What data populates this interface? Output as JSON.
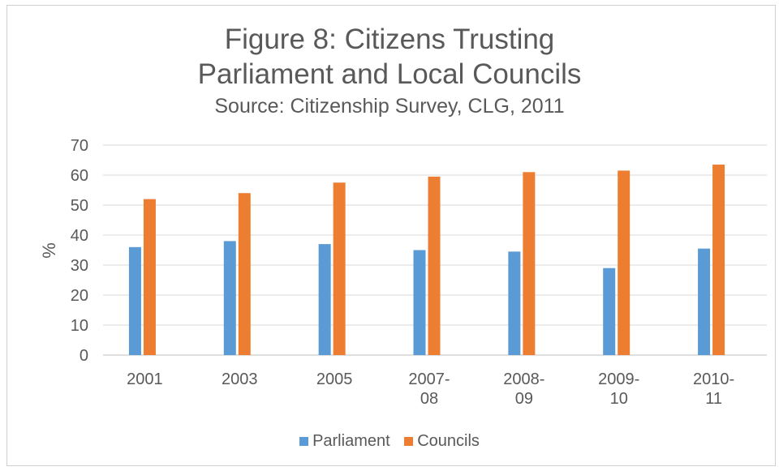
{
  "chart_data": {
    "type": "bar",
    "title_line1": "Figure 8: Citizens Trusting",
    "title_line2": "Parliament and Local Councils",
    "subtitle": "Source: Citizenship Survey, CLG, 2011",
    "ylabel": "%",
    "ylim": [
      0,
      70
    ],
    "yticks": [
      0,
      10,
      20,
      30,
      40,
      50,
      60,
      70
    ],
    "categories": [
      [
        "2001"
      ],
      [
        "2003"
      ],
      [
        "2005"
      ],
      [
        "2007-",
        "08"
      ],
      [
        "2008-",
        "09"
      ],
      [
        "2009-",
        "10"
      ],
      [
        "2010-",
        "11"
      ]
    ],
    "series": [
      {
        "name": "Parliament",
        "color": "#5b9bd5",
        "values": [
          36,
          38,
          37,
          35,
          34.5,
          29,
          35.5
        ]
      },
      {
        "name": "Councils",
        "color": "#ed7d31",
        "values": [
          52,
          54,
          57.5,
          59.5,
          61,
          61.5,
          63.5
        ]
      }
    ],
    "grid": "horizontal",
    "legend_position": "bottom"
  }
}
